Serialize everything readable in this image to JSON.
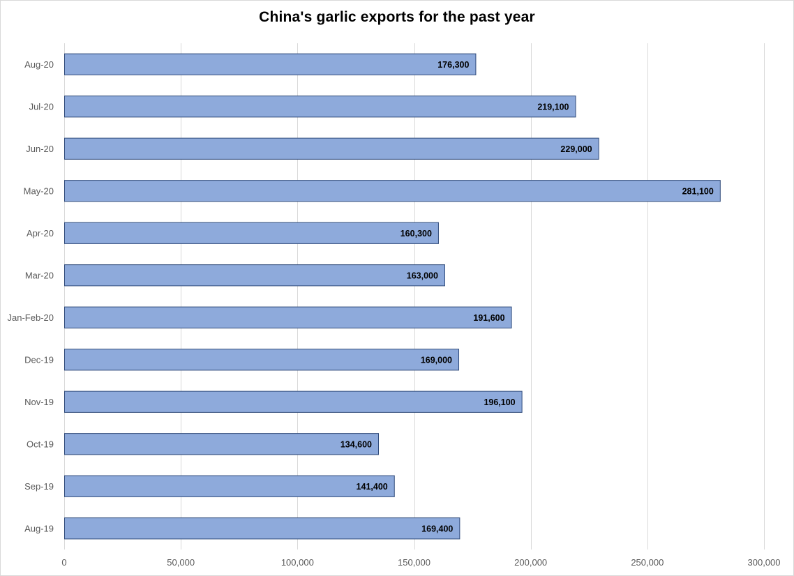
{
  "chart_data": {
    "type": "bar",
    "orientation": "horizontal",
    "title": "China's garlic exports for the past year",
    "categories": [
      "Aug-20",
      "Jul-20",
      "Jun-20",
      "May-20",
      "Apr-20",
      "Mar-20",
      "Jan-Feb-20",
      "Dec-19",
      "Nov-19",
      "Oct-19",
      "Sep-19",
      "Aug-19"
    ],
    "values": [
      176300,
      219100,
      229000,
      281100,
      160300,
      163000,
      191600,
      169000,
      196100,
      134600,
      141400,
      169400
    ],
    "data_labels": [
      "176,300",
      "219,100",
      "229,000",
      "281,100",
      "160,300",
      "163,000",
      "191,600",
      "169,000",
      "196,100",
      "134,600",
      "141,400",
      "169,400"
    ],
    "x_ticks": [
      0,
      50000,
      100000,
      150000,
      200000,
      250000,
      300000
    ],
    "x_tick_labels": [
      "0",
      "50,000",
      "100,000",
      "150,000",
      "200,000",
      "250,000",
      "300,000"
    ],
    "xlim": [
      0,
      300000
    ],
    "xlabel": "",
    "ylabel": "",
    "grid": "vertical",
    "legend": "none",
    "bar_color": "#8eaadb",
    "bar_border_color": "#2f4a7a",
    "grid_color": "#d9d9d9"
  }
}
